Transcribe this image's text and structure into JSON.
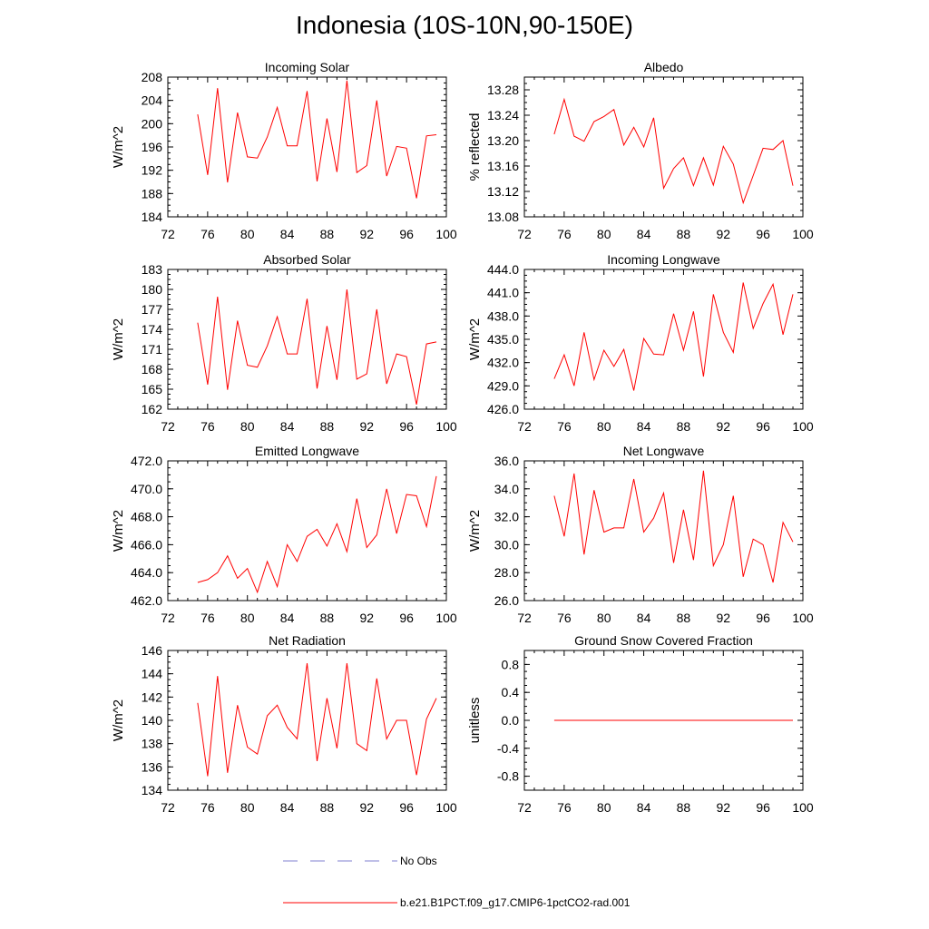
{
  "page_title": "Indonesia (10S-10N,90-150E)",
  "colors": {
    "model_line": "#ff0000",
    "obs_line": "#8080d0",
    "axis": "#000000"
  },
  "legend": {
    "obs_label": "No Obs",
    "model_label": "b.e21.B1PCT.f09_g17.CMIP6-1pctCO2-rad.001"
  },
  "chart_data": [
    {
      "type": "line",
      "title": "Incoming Solar",
      "ylabel": "W/m^2",
      "xlim": [
        72,
        100
      ],
      "ylim": [
        184,
        208
      ],
      "xticks": [
        72,
        76,
        80,
        84,
        88,
        92,
        96,
        100
      ],
      "xtick_labels": [
        "72",
        "76",
        "80",
        "84",
        "88",
        "92",
        "96",
        "100"
      ],
      "yticks": [
        184,
        188,
        192,
        196,
        200,
        204,
        208
      ],
      "ytick_labels": [
        "184",
        "188",
        "192",
        "196",
        "200",
        "204",
        "208"
      ],
      "series": [
        {
          "x": [
            75,
            76,
            77,
            78,
            79,
            80,
            81,
            82,
            83,
            84,
            85,
            86,
            87,
            88,
            89,
            90,
            91,
            92,
            93,
            94,
            95,
            96,
            97,
            98,
            99
          ],
          "values": [
            201.6,
            191.2,
            206.1,
            189.9,
            201.9,
            194.3,
            194.1,
            197.7,
            202.8,
            196.2,
            196.2,
            205.6,
            190.1,
            200.9,
            191.7,
            207.4,
            191.6,
            192.8,
            204.0,
            191.0,
            196.1,
            195.8,
            187.2,
            197.9,
            198.1
          ]
        }
      ]
    },
    {
      "type": "line",
      "title": "Albedo",
      "ylabel": "% reflected",
      "xlim": [
        72,
        100
      ],
      "ylim": [
        13.08,
        13.3
      ],
      "xticks": [
        72,
        76,
        80,
        84,
        88,
        92,
        96,
        100
      ],
      "xtick_labels": [
        "72",
        "76",
        "80",
        "84",
        "88",
        "92",
        "96",
        "100"
      ],
      "yticks": [
        13.08,
        13.12,
        13.16,
        13.2,
        13.24,
        13.28
      ],
      "ytick_labels": [
        "13.08",
        "13.12",
        "13.16",
        "13.20",
        "13.24",
        "13.28"
      ],
      "series": [
        {
          "x": [
            75,
            76,
            77,
            78,
            79,
            80,
            81,
            82,
            83,
            84,
            85,
            86,
            87,
            88,
            89,
            90,
            91,
            92,
            93,
            94,
            95,
            96,
            97,
            98,
            99
          ],
          "values": [
            13.21,
            13.265,
            13.207,
            13.199,
            13.23,
            13.238,
            13.249,
            13.193,
            13.221,
            13.19,
            13.236,
            13.125,
            13.156,
            13.173,
            13.129,
            13.173,
            13.13,
            13.191,
            13.163,
            13.102,
            13.145,
            13.188,
            13.186,
            13.2,
            13.129
          ]
        }
      ]
    },
    {
      "type": "line",
      "title": "Absorbed Solar",
      "ylabel": "W/m^2",
      "xlim": [
        72,
        100
      ],
      "ylim": [
        162,
        183
      ],
      "xticks": [
        72,
        76,
        80,
        84,
        88,
        92,
        96,
        100
      ],
      "xtick_labels": [
        "72",
        "76",
        "80",
        "84",
        "88",
        "92",
        "96",
        "100"
      ],
      "yticks": [
        162,
        165,
        168,
        171,
        174,
        177,
        180,
        183
      ],
      "ytick_labels": [
        "162",
        "165",
        "168",
        "171",
        "174",
        "177",
        "180",
        "183"
      ],
      "series": [
        {
          "x": [
            75,
            76,
            77,
            78,
            79,
            80,
            81,
            82,
            83,
            84,
            85,
            86,
            87,
            88,
            89,
            90,
            91,
            92,
            93,
            94,
            95,
            96,
            97,
            98,
            99
          ],
          "values": [
            175.0,
            165.7,
            178.9,
            164.9,
            175.3,
            168.6,
            168.3,
            171.5,
            175.9,
            170.3,
            170.3,
            178.6,
            165.1,
            174.5,
            166.4,
            180.0,
            166.5,
            167.3,
            177.0,
            165.8,
            170.3,
            169.9,
            162.7,
            171.8,
            172.1
          ]
        }
      ]
    },
    {
      "type": "line",
      "title": "Incoming Longwave",
      "ylabel": "W/m^2",
      "xlim": [
        72,
        100
      ],
      "ylim": [
        426,
        444
      ],
      "xticks": [
        72,
        76,
        80,
        84,
        88,
        92,
        96,
        100
      ],
      "xtick_labels": [
        "72",
        "76",
        "80",
        "84",
        "88",
        "92",
        "96",
        "100"
      ],
      "yticks": [
        426,
        429,
        432,
        435,
        438,
        441,
        444
      ],
      "ytick_labels": [
        "426.0",
        "429.0",
        "432.0",
        "435.0",
        "438.0",
        "441.0",
        "444.0"
      ],
      "series": [
        {
          "x": [
            75,
            76,
            77,
            78,
            79,
            80,
            81,
            82,
            83,
            84,
            85,
            86,
            87,
            88,
            89,
            90,
            91,
            92,
            93,
            94,
            95,
            96,
            97,
            98,
            99
          ],
          "values": [
            429.9,
            433.0,
            429.0,
            435.9,
            429.8,
            433.6,
            431.5,
            433.7,
            428.4,
            435.1,
            433.1,
            433.0,
            438.3,
            433.6,
            438.6,
            430.2,
            440.8,
            435.9,
            433.3,
            442.3,
            436.4,
            439.6,
            442.1,
            435.6,
            440.8
          ]
        }
      ]
    },
    {
      "type": "line",
      "title": "Emitted Longwave",
      "ylabel": "W/m^2",
      "xlim": [
        72,
        100
      ],
      "ylim": [
        462,
        472
      ],
      "xticks": [
        72,
        76,
        80,
        84,
        88,
        92,
        96,
        100
      ],
      "xtick_labels": [
        "72",
        "76",
        "80",
        "84",
        "88",
        "92",
        "96",
        "100"
      ],
      "yticks": [
        462,
        464,
        466,
        468,
        470,
        472
      ],
      "ytick_labels": [
        "462.0",
        "464.0",
        "466.0",
        "468.0",
        "470.0",
        "472.0"
      ],
      "series": [
        {
          "x": [
            75,
            76,
            77,
            78,
            79,
            80,
            81,
            82,
            83,
            84,
            85,
            86,
            87,
            88,
            89,
            90,
            91,
            92,
            93,
            94,
            95,
            96,
            97,
            98,
            99
          ],
          "values": [
            463.3,
            463.5,
            464.0,
            465.2,
            463.6,
            464.3,
            462.6,
            464.8,
            463.0,
            466.0,
            464.8,
            466.6,
            467.1,
            465.9,
            467.5,
            465.5,
            469.3,
            465.8,
            466.7,
            470.0,
            466.8,
            469.6,
            469.5,
            467.3,
            470.9
          ]
        }
      ]
    },
    {
      "type": "line",
      "title": "Net Longwave",
      "ylabel": "W/m^2",
      "xlim": [
        72,
        100
      ],
      "ylim": [
        26,
        36
      ],
      "xticks": [
        72,
        76,
        80,
        84,
        88,
        92,
        96,
        100
      ],
      "xtick_labels": [
        "72",
        "76",
        "80",
        "84",
        "88",
        "92",
        "96",
        "100"
      ],
      "yticks": [
        26,
        28,
        30,
        32,
        34,
        36
      ],
      "ytick_labels": [
        "26.0",
        "28.0",
        "30.0",
        "32.0",
        "34.0",
        "36.0"
      ],
      "series": [
        {
          "x": [
            75,
            76,
            77,
            78,
            79,
            80,
            81,
            82,
            83,
            84,
            85,
            86,
            87,
            88,
            89,
            90,
            91,
            92,
            93,
            94,
            95,
            96,
            97,
            98,
            99
          ],
          "values": [
            33.5,
            30.6,
            35.1,
            29.3,
            33.9,
            30.9,
            31.2,
            31.2,
            34.7,
            30.9,
            31.9,
            33.7,
            28.7,
            32.5,
            28.9,
            35.3,
            28.5,
            30.0,
            33.5,
            27.7,
            30.4,
            30.0,
            27.3,
            31.6,
            30.2
          ]
        }
      ]
    },
    {
      "type": "line",
      "title": "Net Radiation",
      "ylabel": "W/m^2",
      "xlim": [
        72,
        100
      ],
      "ylim": [
        134,
        146
      ],
      "xticks": [
        72,
        76,
        80,
        84,
        88,
        92,
        96,
        100
      ],
      "xtick_labels": [
        "72",
        "76",
        "80",
        "84",
        "88",
        "92",
        "96",
        "100"
      ],
      "yticks": [
        134,
        136,
        138,
        140,
        142,
        144,
        146
      ],
      "ytick_labels": [
        "134",
        "136",
        "138",
        "140",
        "142",
        "144",
        "146"
      ],
      "series": [
        {
          "x": [
            75,
            76,
            77,
            78,
            79,
            80,
            81,
            82,
            83,
            84,
            85,
            86,
            87,
            88,
            89,
            90,
            91,
            92,
            93,
            94,
            95,
            96,
            97,
            98,
            99
          ],
          "values": [
            141.5,
            135.2,
            143.8,
            135.5,
            141.3,
            137.7,
            137.1,
            140.4,
            141.3,
            139.4,
            138.4,
            144.9,
            136.5,
            141.9,
            137.6,
            144.9,
            138.0,
            137.4,
            143.6,
            138.4,
            140.0,
            140.0,
            135.3,
            140.1,
            141.9
          ]
        }
      ]
    },
    {
      "type": "line",
      "title": "Ground Snow Covered Fraction",
      "ylabel": "unitless",
      "xlim": [
        72,
        100
      ],
      "ylim": [
        -1.0,
        1.0
      ],
      "xticks": [
        72,
        76,
        80,
        84,
        88,
        92,
        96,
        100
      ],
      "xtick_labels": [
        "72",
        "76",
        "80",
        "84",
        "88",
        "92",
        "96",
        "100"
      ],
      "yticks": [
        -0.8,
        -0.4,
        0.0,
        0.4,
        0.8
      ],
      "ytick_labels": [
        "-0.8",
        "-0.4",
        "0.0",
        "0.4",
        "0.8"
      ],
      "series": [
        {
          "x": [
            75,
            76,
            77,
            78,
            79,
            80,
            81,
            82,
            83,
            84,
            85,
            86,
            87,
            88,
            89,
            90,
            91,
            92,
            93,
            94,
            95,
            96,
            97,
            98,
            99
          ],
          "values": [
            0,
            0,
            0,
            0,
            0,
            0,
            0,
            0,
            0,
            0,
            0,
            0,
            0,
            0,
            0,
            0,
            0,
            0,
            0,
            0,
            0,
            0,
            0,
            0,
            0
          ]
        }
      ]
    }
  ]
}
